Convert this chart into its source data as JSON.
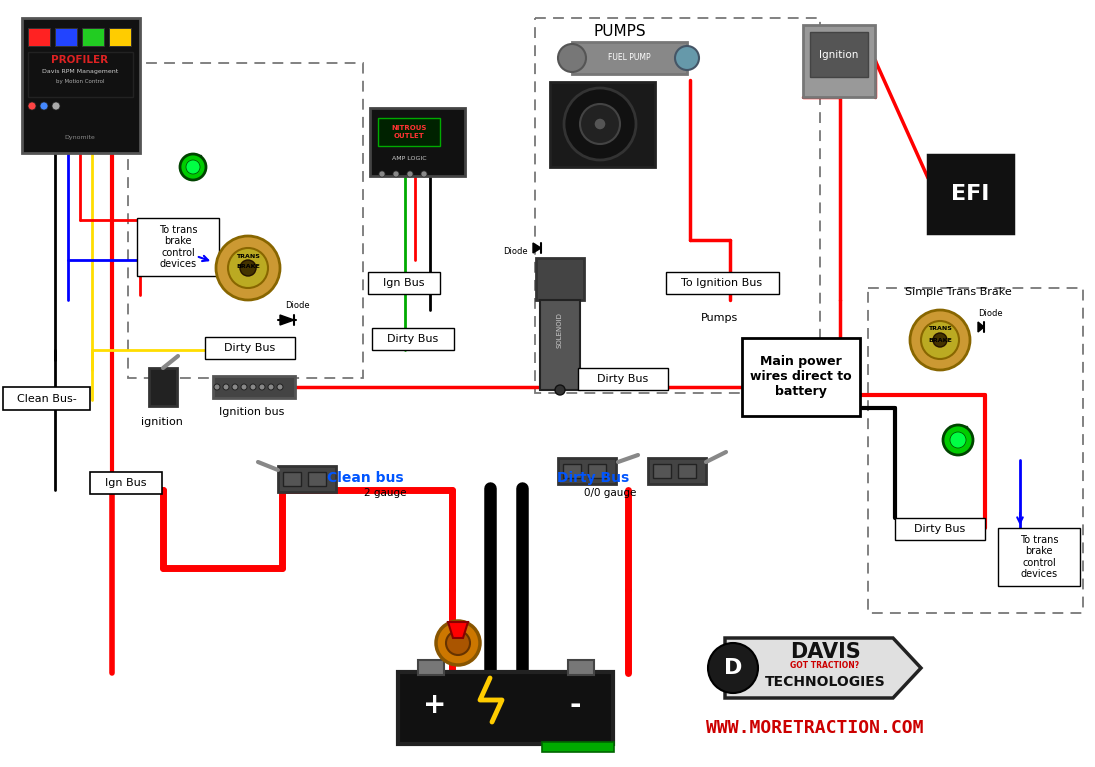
{
  "bg_color": "#ffffff",
  "fig_width": 10.95,
  "fig_height": 7.67,
  "labels": {
    "clean_bus": "Clean Bus-",
    "ign_bus_left": "Ign Bus",
    "ignition": "ignition",
    "ignition_bus": "Ignition bus",
    "clean_bus_label": "Clean bus",
    "dirty_bus_main": "Dirty Bus",
    "gauge_2": "2 gauge",
    "gauge_00": "0/0 gauge",
    "pumps_label": "Pumps",
    "pumps_section": "PUMPS",
    "to_ign_bus": "To Ignition Bus",
    "main_power": "Main power\nwires direct to\nbattery",
    "simple_trans_brake": "Simple Trans Brake",
    "to_trans_brake_left": "To trans\nbrake\ncontrol\ndevices",
    "to_trans_brake_right": "To trans\nbrake\ncontrol\ndevices",
    "ign_bus_box": "Ign Bus",
    "dirty_bus": "Dirty Bus",
    "diode": "Diode",
    "website": "WWW.MORETRACTION.COM"
  },
  "colors": {
    "red": "#ff0000",
    "black": "#000000",
    "yellow": "#ffdd00",
    "blue": "#0000ff",
    "green": "#00aa00",
    "dark_gray": "#333333",
    "light_gray": "#cccccc",
    "white": "#ffffff",
    "dashed_box": "#888888",
    "clean_bus_text": "#0055ff",
    "dirty_bus_text": "#0055ff",
    "website_red": "#cc0000",
    "brass": "#cc9933",
    "brass2": "#aa7722"
  }
}
